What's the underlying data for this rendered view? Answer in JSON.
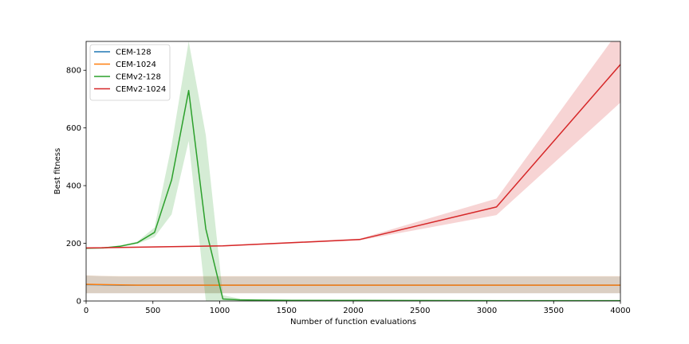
{
  "chart_data": {
    "type": "line",
    "title": "",
    "xlabel": "Number of function evaluations",
    "ylabel": "Best fitness",
    "xlim": [
      0,
      4000
    ],
    "ylim": [
      0,
      900
    ],
    "xticks": [
      0,
      500,
      1000,
      1500,
      2000,
      2500,
      3000,
      3500,
      4000
    ],
    "yticks": [
      0,
      200,
      400,
      600,
      800
    ],
    "grid": false,
    "legend": "top-left",
    "series": [
      {
        "name": "CEM-128",
        "color": "#1f77b4",
        "x": [
          0,
          128,
          256,
          384,
          512,
          640,
          768,
          896,
          1024,
          2048,
          3072,
          4000
        ],
        "y": [
          57,
          56,
          55,
          55,
          55,
          55,
          55,
          55,
          55,
          55,
          55,
          55
        ],
        "band_low": [
          27,
          27,
          27,
          27,
          27,
          27,
          27,
          27,
          27,
          27,
          27,
          27
        ],
        "band_high": [
          88,
          86,
          85,
          85,
          85,
          85,
          85,
          85,
          85,
          85,
          85,
          85
        ]
      },
      {
        "name": "CEM-1024",
        "color": "#ff7f0e",
        "x": [
          0,
          128,
          256,
          384,
          512,
          640,
          768,
          896,
          1024,
          2048,
          3072,
          4000
        ],
        "y": [
          58,
          57,
          56,
          55,
          55,
          55,
          55,
          55,
          55,
          55,
          55,
          55
        ],
        "band_low": [
          27,
          27,
          27,
          27,
          27,
          27,
          27,
          27,
          27,
          27,
          27,
          27
        ],
        "band_high": [
          89,
          87,
          86,
          86,
          86,
          86,
          86,
          86,
          86,
          86,
          86,
          86
        ]
      },
      {
        "name": "CEMv2-128",
        "color": "#2ca02c",
        "x": [
          0,
          128,
          256,
          384,
          512,
          640,
          768,
          896,
          1024,
          1152,
          1280,
          1536,
          2048,
          3072,
          4000
        ],
        "y": [
          183,
          184,
          190,
          202,
          238,
          420,
          730,
          250,
          7,
          4,
          3,
          2,
          2,
          1,
          1
        ],
        "band_low": [
          181,
          182,
          187,
          198,
          222,
          300,
          555,
          0,
          0,
          0,
          0,
          0,
          0,
          0,
          0
        ],
        "band_high": [
          185,
          186,
          193,
          206,
          255,
          540,
          900,
          575,
          20,
          8,
          6,
          5,
          4,
          3,
          3
        ]
      },
      {
        "name": "CEMv2-1024",
        "color": "#d62728",
        "x": [
          0,
          1024,
          2048,
          3072,
          4000
        ],
        "y": [
          184,
          191,
          213,
          326,
          820
        ],
        "band_low": [
          182,
          189,
          210,
          298,
          688
        ],
        "band_high": [
          186,
          193,
          216,
          355,
          945
        ]
      }
    ]
  }
}
